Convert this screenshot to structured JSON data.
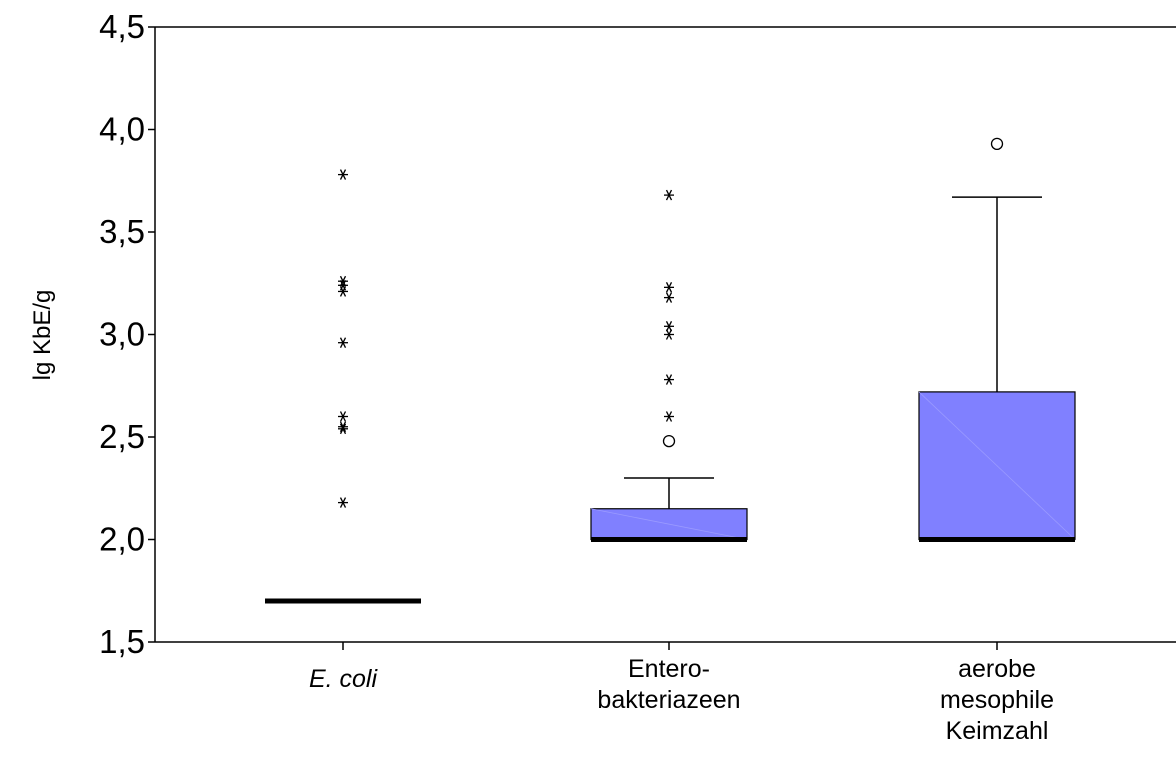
{
  "chart_data": {
    "type": "box",
    "title": "",
    "xlabel": "",
    "ylabel": "lg KbE/g",
    "ylim": [
      1.5,
      4.5
    ],
    "yticks": [
      {
        "value": 1.5,
        "label": "1,5"
      },
      {
        "value": 2.0,
        "label": "2,0"
      },
      {
        "value": 2.5,
        "label": "2,5"
      },
      {
        "value": 3.0,
        "label": "3,0"
      },
      {
        "value": 3.5,
        "label": "3,5"
      },
      {
        "value": 4.0,
        "label": "4,0"
      },
      {
        "value": 4.5,
        "label": "4,5"
      }
    ],
    "box_color": "#8080ff",
    "grid": false,
    "categories": [
      {
        "name": "E. coli",
        "label_lines": [
          "E. coli"
        ],
        "italic": true,
        "q1": 1.7,
        "median": 1.7,
        "q3": 1.7,
        "whisker_low": 1.7,
        "whisker_high": 1.7,
        "outliers": [],
        "extremes": [
          3.78,
          3.26,
          3.24,
          3.21,
          2.96,
          2.6,
          2.55,
          2.54,
          2.18
        ]
      },
      {
        "name": "Entero-bakteriazeen",
        "label_lines": [
          "Entero-",
          "bakteriazeen"
        ],
        "italic": false,
        "q1": 2.0,
        "median": 2.0,
        "q3": 2.15,
        "whisker_low": 2.0,
        "whisker_high": 2.3,
        "outliers": [
          2.48
        ],
        "extremes": [
          3.68,
          3.23,
          3.18,
          3.04,
          3.0,
          2.78,
          2.6
        ]
      },
      {
        "name": "aerobe mesophile Keimzahl",
        "label_lines": [
          "aerobe",
          "mesophile",
          "Keimzahl"
        ],
        "italic": false,
        "q1": 2.0,
        "median": 2.0,
        "q3": 2.72,
        "whisker_low": 2.0,
        "whisker_high": 3.67,
        "outliers": [
          3.93
        ],
        "extremes": []
      }
    ]
  }
}
